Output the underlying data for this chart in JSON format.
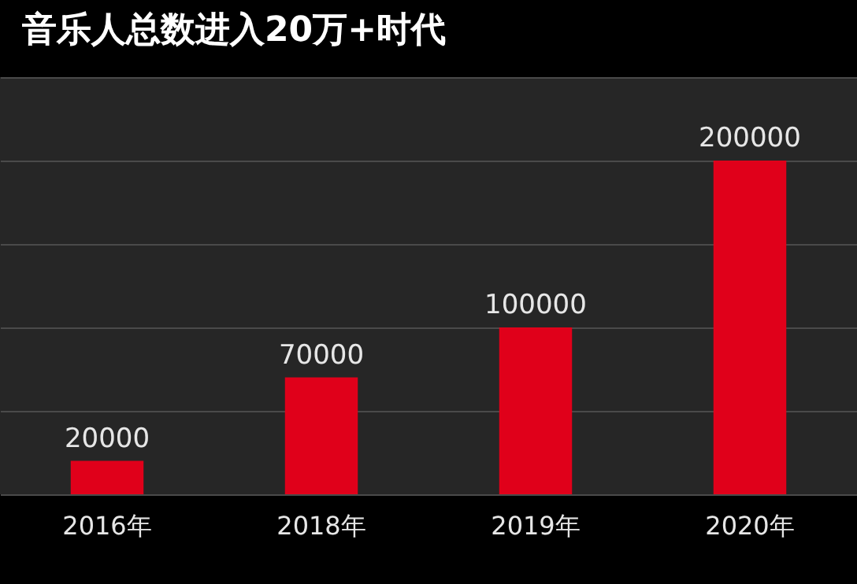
{
  "chart_data": {
    "type": "bar",
    "title": "音乐人总数进入20万+时代",
    "categories": [
      "2016年",
      "2018年",
      "2019年",
      "2020年"
    ],
    "values": [
      20000,
      70000,
      100000,
      200000
    ],
    "color": "#e0001a",
    "ylim": [
      0,
      250000
    ],
    "yticks": [
      {
        "value": 0,
        "label": null
      },
      {
        "value": 50000,
        "label": null
      },
      {
        "value": 100000,
        "label": null
      },
      {
        "value": 150000,
        "label": null
      },
      {
        "value": 200000,
        "label": null
      },
      {
        "value": 250000,
        "label": null
      }
    ],
    "grid": "y",
    "tick_labels": "x",
    "data_labels": true
  }
}
